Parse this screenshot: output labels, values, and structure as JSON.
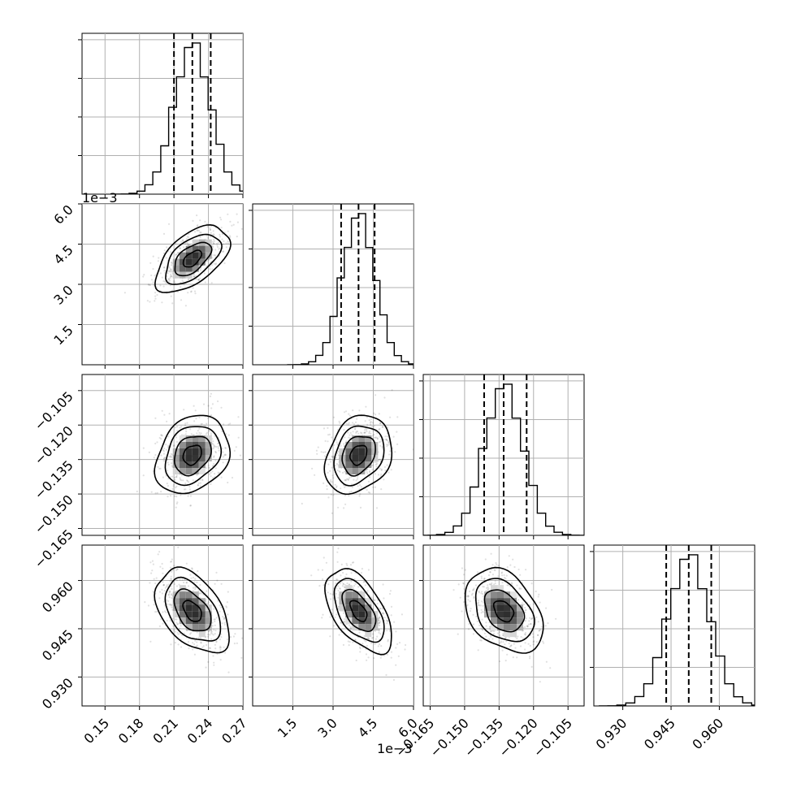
{
  "chart_data": {
    "type": "corner",
    "title": "",
    "grid": true,
    "parameters": [
      {
        "index": 0,
        "range": [
          0.13,
          0.27
        ],
        "ticks": [
          0.15,
          0.18,
          0.21,
          0.24,
          0.27
        ],
        "tick_labels": [
          "0.15",
          "0.18",
          "0.21",
          "0.24",
          "0.27"
        ],
        "offset_text": "",
        "mean": 0.226,
        "sd": 0.016,
        "quantiles": [
          0.21,
          0.226,
          0.242
        ]
      },
      {
        "index": 1,
        "range": [
          0.0,
          6.0
        ],
        "ticks": [
          1.5,
          3.0,
          4.5,
          6.0
        ],
        "tick_labels": [
          "1.5",
          "3.0",
          "4.5",
          "6.0"
        ],
        "offset_text": "1e−3",
        "mean": 3.95,
        "sd": 0.62,
        "quantiles": [
          3.3,
          3.95,
          4.55
        ]
      },
      {
        "index": 2,
        "range": [
          -0.168,
          -0.098
        ],
        "ticks": [
          -0.165,
          -0.15,
          -0.135,
          -0.12,
          -0.105
        ],
        "tick_labels": [
          "−0.165",
          "−0.150",
          "−0.135",
          "−0.120",
          "−0.105"
        ],
        "offset_text": "",
        "mean": -0.133,
        "sd": 0.0085,
        "quantiles": [
          -0.1415,
          -0.133,
          -0.123
        ]
      },
      {
        "index": 3,
        "range": [
          0.921,
          0.971
        ],
        "ticks": [
          0.93,
          0.945,
          0.96
        ],
        "tick_labels": [
          "0.930",
          "0.945",
          "0.960"
        ],
        "offset_text": "",
        "mean": 0.9505,
        "sd": 0.0065,
        "quantiles": [
          0.9435,
          0.9505,
          0.9575
        ]
      }
    ],
    "correlations": [
      {
        "pair": [
          1,
          0
        ],
        "rho": 0.55
      },
      {
        "pair": [
          2,
          0
        ],
        "rho": 0.25
      },
      {
        "pair": [
          2,
          1
        ],
        "rho": 0.25
      },
      {
        "pair": [
          3,
          0
        ],
        "rho": -0.45
      },
      {
        "pair": [
          3,
          1
        ],
        "rho": -0.55
      },
      {
        "pair": [
          3,
          2
        ],
        "rho": -0.35
      }
    ],
    "contour_levels_sigma": [
      0.5,
      1.0,
      1.5,
      2.0
    ]
  }
}
